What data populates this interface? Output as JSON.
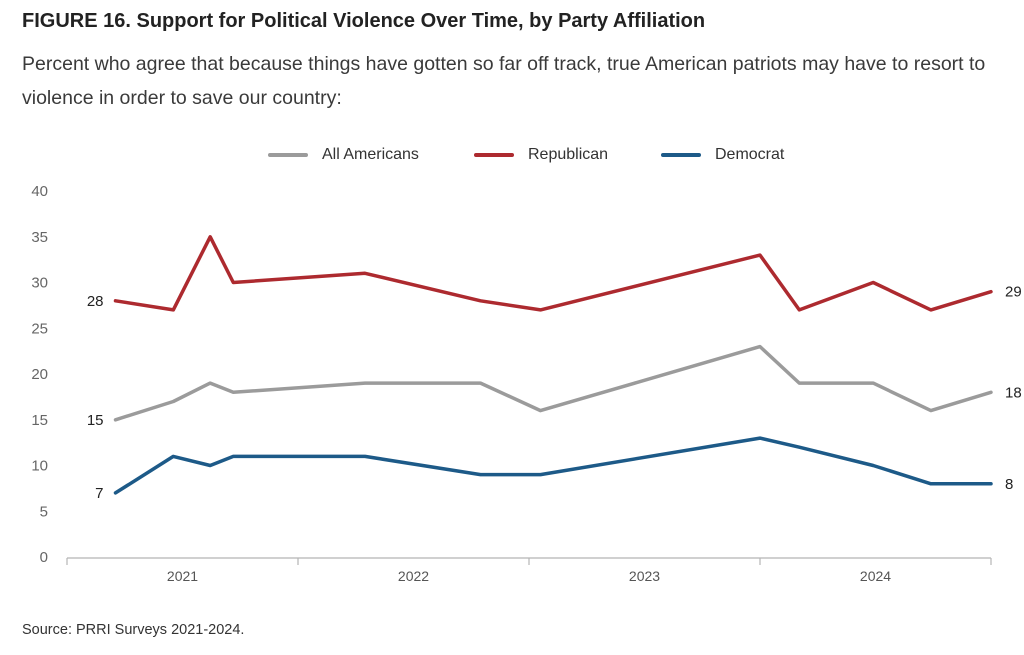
{
  "header": {
    "title": "FIGURE 16.  Support for Political Violence Over Time, by Party Affiliation",
    "subtitle": "Percent who agree that because things have gotten so far off track, true American patriots may have to resort to violence in order to save our country:"
  },
  "footer": {
    "source": "Source: PRRI Surveys 2021-2024."
  },
  "colors": {
    "all": "#9b9b9b",
    "republican": "#ad2a2f",
    "democrat": "#1d5a88",
    "axis": "#b5b5b5"
  },
  "chart_data": {
    "type": "line",
    "title": "FIGURE 16.  Support for Political Violence Over Time, by Party Affiliation",
    "xlabel": "",
    "ylabel": "",
    "ylim": [
      0,
      40
    ],
    "yticks": [
      0,
      5,
      10,
      15,
      20,
      25,
      30,
      35,
      40
    ],
    "xlim": [
      2020.78,
      2024.78
    ],
    "xticks": [
      "2021",
      "2022",
      "2023",
      "2024"
    ],
    "grid": false,
    "legend": "top-center",
    "series": [
      {
        "name": "All Americans",
        "color": "#9b9b9b",
        "x": [
          2020.99,
          2021.24,
          2021.4,
          2021.5,
          2022.07,
          2022.57,
          2022.83,
          2023.78,
          2023.95,
          2024.27,
          2024.52,
          2024.78
        ],
        "values": [
          15,
          17,
          19,
          18,
          19,
          19,
          16,
          23,
          19,
          19,
          16,
          18
        ],
        "start_label": "15",
        "end_label": "18"
      },
      {
        "name": "Republican",
        "color": "#ad2a2f",
        "x": [
          2020.99,
          2021.24,
          2021.4,
          2021.5,
          2022.07,
          2022.57,
          2022.83,
          2023.78,
          2023.95,
          2024.27,
          2024.52,
          2024.78
        ],
        "values": [
          28,
          27,
          35,
          30,
          31,
          28,
          27,
          33,
          27,
          30,
          27,
          29
        ],
        "start_label": "28",
        "end_label": "29"
      },
      {
        "name": "Democrat",
        "color": "#1d5a88",
        "x": [
          2020.99,
          2021.24,
          2021.4,
          2021.5,
          2022.07,
          2022.57,
          2022.83,
          2023.78,
          2023.95,
          2024.27,
          2024.52,
          2024.78
        ],
        "values": [
          7,
          11,
          10,
          11,
          11,
          9,
          9,
          13,
          12,
          10,
          8,
          8
        ],
        "start_label": "7",
        "end_label": "8"
      }
    ]
  }
}
